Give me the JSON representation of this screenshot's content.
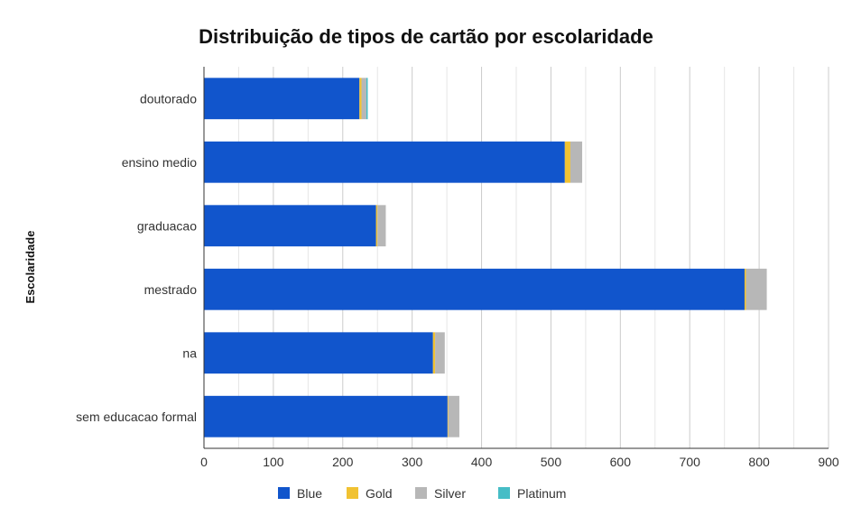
{
  "chart_data": {
    "type": "bar",
    "orientation": "horizontal",
    "stacked": true,
    "title": "Distribuição de tipos de cartão por escolaridade",
    "xlabel": "",
    "ylabel": "Escolaridade",
    "xlim": [
      0,
      900
    ],
    "xticks": [
      0,
      100,
      200,
      300,
      400,
      500,
      600,
      700,
      800,
      900
    ],
    "grid": true,
    "legend_position": "bottom",
    "categories": [
      "doutorado",
      "ensino medio",
      "graduacao",
      "mestrado",
      "na",
      "sem educacao formal"
    ],
    "series": [
      {
        "name": "Blue",
        "color": "#1155cc",
        "values": [
          224,
          520,
          248,
          779,
          330,
          351
        ]
      },
      {
        "name": "Gold",
        "color": "#f1c232",
        "values": [
          3,
          8,
          2,
          2,
          3,
          1
        ]
      },
      {
        "name": "Silver",
        "color": "#b7b7b7",
        "values": [
          7,
          17,
          12,
          30,
          14,
          16
        ]
      },
      {
        "name": "Platinum",
        "color": "#46bdc6",
        "values": [
          2,
          0,
          0,
          0,
          0,
          0
        ]
      }
    ]
  }
}
